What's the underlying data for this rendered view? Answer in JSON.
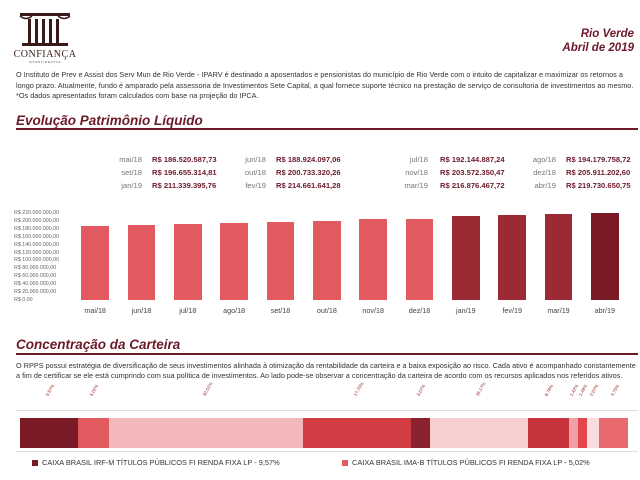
{
  "logo": {
    "name": "CONFIANÇA",
    "sub": "INVESTIMENTOS"
  },
  "header": {
    "city": "Rio Verde",
    "date": "Abril de 2019"
  },
  "intro": {
    "paragraph": "O Instituto de Prev e Assist dos Serv Mun de Rio Verde - IPARV é destinado a aposentados e pensionistas do município de Rio Verde com o intuito de capitalizar e maximizar os retornos a longo prazo. Atualmente, fundo é amparado pela assessoria de Investimentos Sete Capital, a qual fornece suporte técnico na prestação de serviço de consultoria de investimentos ao mesmo.",
    "note": "*Os dados apresentados foram calculados com base na projeção do IPCA."
  },
  "section1": {
    "title": "Evolução Patrimônio Líquido"
  },
  "values": [
    {
      "label": "mai/18",
      "amount": "R$ 186.520.587,73"
    },
    {
      "label": "jun/18",
      "amount": "R$ 188.924.097,06"
    },
    {
      "label": "jul/18",
      "amount": "R$ 192.144.887,24"
    },
    {
      "label": "ago/18",
      "amount": "R$ 194.179.758,72"
    },
    {
      "label": "set/18",
      "amount": "R$ 196.655.314,81"
    },
    {
      "label": "out/18",
      "amount": "R$ 200.733.320,26"
    },
    {
      "label": "nov/18",
      "amount": "R$ 203.572.350,47"
    },
    {
      "label": "dez/18",
      "amount": "R$ 205.911.202,60"
    },
    {
      "label": "jan/19",
      "amount": "R$ 211.339.395,76"
    },
    {
      "label": "fev/19",
      "amount": "R$ 214.661.641,28"
    },
    {
      "label": "mar/19",
      "amount": "R$ 216.876.467,72"
    },
    {
      "label": "abr/19",
      "amount": "R$ 219.730.650,75"
    }
  ],
  "chart_data": {
    "type": "bar",
    "categories": [
      "mai/18",
      "jun/18",
      "jul/18",
      "ago/18",
      "set/18",
      "out/18",
      "nov/18",
      "dez/18",
      "jan/19",
      "fev/19",
      "mar/19",
      "abr/19"
    ],
    "values": [
      186520587.73,
      188924097.06,
      192144887.24,
      194179758.72,
      196655314.81,
      200733320.26,
      203572350.47,
      205911202.6,
      211339395.76,
      214661641.28,
      216876467.72,
      219730650.75
    ],
    "ylim": [
      0,
      220000000
    ],
    "yticks": [
      "R$ 0,00",
      "R$ 20.000.000,00",
      "R$ 40.000.000,00",
      "R$ 60.000.000,00",
      "R$ 80.000.000,00",
      "R$ 100.000.000,00",
      "R$ 120.000.000,00",
      "R$ 140.000.000,00",
      "R$ 160.000.000,00",
      "R$ 180.000.000,00",
      "R$ 200.000.000,00",
      "R$ 220.000.000,00"
    ],
    "colors": [
      "#e05a5f",
      "#e05a5f",
      "#e05a5f",
      "#e05a5f",
      "#e05a5f",
      "#e05a5f",
      "#e05a5f",
      "#e05a5f",
      "#9b2a35",
      "#9b2a35",
      "#9b2a35",
      "#7a1a26"
    ]
  },
  "section2": {
    "title": "Concentração da Carteira",
    "paragraph": "O RPPS possui estratégia de diversificação de seus investimentos alinhada à otimização da rentabilidade da carteira e a baixa exposição ao risco. Cada ativo é acompanhado constantemente a fim de certificar se ele está cumprindo com sua política de investimentos. Ao lado pode-se observar a concentração da carteira de acordo com os recursos aplicados nos referidos ativos."
  },
  "allocation": [
    {
      "label": "9,57%",
      "value": 9.57,
      "color": "#7a1a26"
    },
    {
      "label": "5,02%",
      "value": 5.02,
      "color": "#e05a5f"
    },
    {
      "label": "32,01%",
      "value": 32.01,
      "color": "#f2b8bb"
    },
    {
      "label": "17,70%",
      "value": 17.7,
      "color": "#d43c44"
    },
    {
      "label": "3,07%",
      "value": 3.07,
      "color": "#8b2230"
    },
    {
      "label": "16,17%",
      "value": 16.17,
      "color": "#f7cfd1"
    },
    {
      "label": "6,78%",
      "value": 6.78,
      "color": "#c8343c"
    },
    {
      "label": "1,42%",
      "value": 1.42,
      "color": "#f0a0a4"
    },
    {
      "label": "1,49%",
      "value": 1.49,
      "color": "#e2474e"
    },
    {
      "label": "2,07%",
      "value": 2.07,
      "color": "#f9dcdd"
    },
    {
      "label": "4,70%",
      "value": 4.7,
      "color": "#e86a6f"
    }
  ],
  "legend": [
    {
      "label": "CAIXA BRASIL IRF-M TÍTULOS PÚBLICOS FI RENDA FIXA LP - 9,57%",
      "color": "#7a1a26"
    },
    {
      "label": "CAIXA BRASIL IMA-B TÍTULOS PÚBLICOS FI RENDA FIXA LP - 5,02%",
      "color": "#e05a5f"
    }
  ]
}
